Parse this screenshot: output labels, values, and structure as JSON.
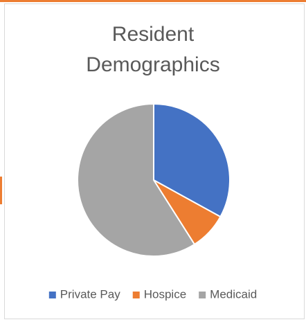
{
  "chart_data": {
    "type": "pie",
    "title": "Resident Demographics",
    "categories": [
      "Private Pay",
      "Hospice",
      "Medicaid"
    ],
    "values": [
      33,
      8,
      59
    ],
    "colors": [
      "#4472c4",
      "#ed7d31",
      "#a5a5a5"
    ],
    "legend": "bottom"
  }
}
